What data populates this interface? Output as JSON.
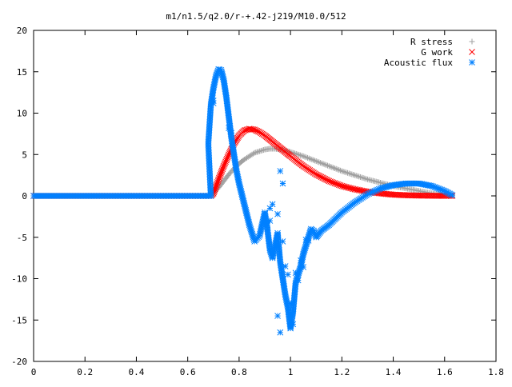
{
  "chart_data": {
    "type": "scatter",
    "title": "m1/n1.5/q2.0/r-+.42-j219/M10.0/512",
    "xlabel": "",
    "ylabel": "",
    "xlim": [
      0,
      1.8
    ],
    "ylim": [
      -20,
      20
    ],
    "xticks": [
      "0",
      "0.2",
      "0.4",
      "0.6",
      "0.8",
      "1",
      "1.2",
      "1.4",
      "1.6",
      "1.8"
    ],
    "yticks": [
      "-20",
      "-15",
      "-10",
      "-5",
      "0",
      "5",
      "10",
      "15",
      "20"
    ],
    "grid": false,
    "legend_position": "top-right",
    "series": [
      {
        "name": "R stress",
        "marker": "plus",
        "color": "#a0a0a0",
        "x": [
          0.0,
          0.69,
          0.7,
          0.72,
          0.74,
          0.76,
          0.78,
          0.8,
          0.82,
          0.84,
          0.86,
          0.88,
          0.9,
          0.92,
          0.94,
          0.96,
          0.98,
          1.0,
          1.05,
          1.1,
          1.15,
          1.2,
          1.25,
          1.3,
          1.35,
          1.4,
          1.45,
          1.5,
          1.55,
          1.6,
          1.63
        ],
        "y": [
          0,
          0,
          0.3,
          1.0,
          1.8,
          2.6,
          3.3,
          3.9,
          4.4,
          4.8,
          5.2,
          5.4,
          5.6,
          5.7,
          5.7,
          5.6,
          5.5,
          5.3,
          4.8,
          4.2,
          3.6,
          3.0,
          2.5,
          2.0,
          1.6,
          1.2,
          0.9,
          0.6,
          0.3,
          0.1,
          0
        ]
      },
      {
        "name": "G work",
        "marker": "cross",
        "color": "#ff0000",
        "x": [
          0.0,
          0.69,
          0.7,
          0.72,
          0.74,
          0.76,
          0.78,
          0.8,
          0.82,
          0.84,
          0.86,
          0.88,
          0.9,
          0.92,
          0.94,
          0.96,
          0.98,
          1.0,
          1.05,
          1.1,
          1.15,
          1.2,
          1.25,
          1.3,
          1.35,
          1.4,
          1.45,
          1.5,
          1.55,
          1.6,
          1.63
        ],
        "y": [
          0,
          0,
          0.3,
          2.0,
          3.6,
          5.0,
          6.3,
          7.3,
          7.9,
          8.1,
          8.0,
          7.7,
          7.3,
          6.8,
          6.3,
          5.8,
          5.3,
          4.8,
          3.6,
          2.6,
          1.8,
          1.2,
          0.8,
          0.5,
          0.3,
          0.15,
          0.08,
          0.04,
          0.02,
          0.01,
          0
        ]
      },
      {
        "name": "Acoustic flux",
        "marker": "star",
        "color": "#0080ff",
        "x": [
          0.0,
          0.69,
          0.68,
          0.69,
          0.7,
          0.71,
          0.72,
          0.73,
          0.74,
          0.75,
          0.76,
          0.77,
          0.78,
          0.79,
          0.8,
          0.82,
          0.84,
          0.86,
          0.88,
          0.9,
          0.91,
          0.92,
          0.93,
          0.94,
          0.95,
          0.96,
          0.97,
          0.98,
          0.99,
          1.0,
          1.01,
          1.02,
          1.03,
          1.04,
          1.05,
          1.06,
          1.07,
          1.08,
          1.09,
          1.1,
          1.11,
          1.12,
          1.15,
          1.2,
          1.25,
          1.3,
          1.35,
          1.4,
          1.45,
          1.5,
          1.55,
          1.6,
          1.63,
          0.7,
          0.7,
          0.76,
          0.77,
          0.91,
          0.92,
          0.92,
          0.93,
          0.95,
          0.96,
          0.97,
          0.97,
          0.98,
          0.99,
          1.0,
          1.01,
          1.02,
          1.03,
          1.04,
          1.05,
          1.06,
          1.07,
          0.95,
          0.96
        ],
        "y": [
          0,
          0,
          6.3,
          11.0,
          13.0,
          14.5,
          15.3,
          15.2,
          14.0,
          12.0,
          9.5,
          7.0,
          5.0,
          3.0,
          1.5,
          -1.0,
          -3.5,
          -5.5,
          -4.8,
          -2.0,
          -4.0,
          -6.5,
          -7.5,
          -6.0,
          -4.5,
          -8.0,
          -10.0,
          -12.0,
          -13.5,
          -16.0,
          -14.0,
          -10.5,
          -9.5,
          -8.5,
          -7.0,
          -6.0,
          -5.0,
          -4.0,
          -4.2,
          -5.0,
          -4.6,
          -4.2,
          -3.5,
          -2.0,
          -0.8,
          0.2,
          0.9,
          1.3,
          1.5,
          1.5,
          1.2,
          0.6,
          0.1,
          11.5,
          11.2,
          8.2,
          7.6,
          -3.5,
          -3.0,
          -1.5,
          -1.0,
          -2.2,
          3.0,
          1.5,
          -5.5,
          -8.5,
          -9.5,
          -13.0,
          -15.5,
          -9.3,
          -10.2,
          -7.8,
          -8.6,
          -5.3,
          -5.4,
          -14.5,
          -16.5
        ]
      }
    ]
  }
}
